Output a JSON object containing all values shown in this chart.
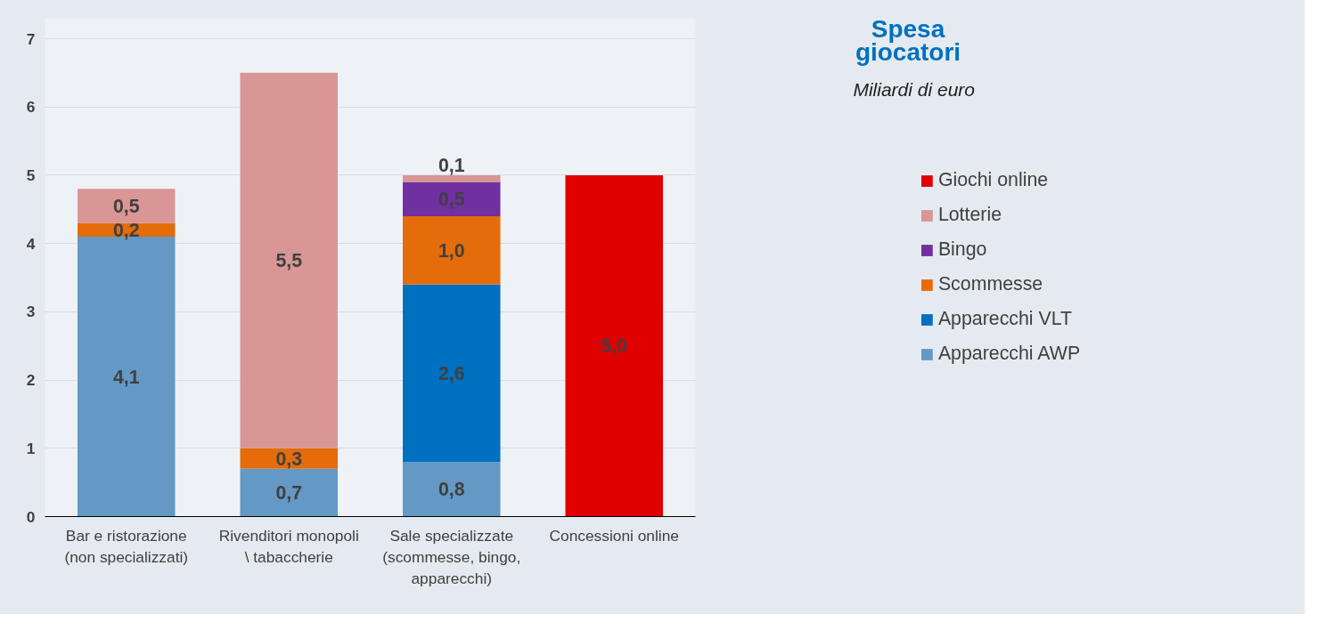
{
  "chart_data": {
    "type": "bar",
    "title": "Spesa giocatori",
    "subtitle": "Miliardi di euro",
    "categories": [
      "Bar e ristorazione (non specializzati)",
      "Rivenditori monopoli \\ tabaccherie",
      "Sale specializzate (scommesse, bingo, apparecchi)",
      "Concessioni online"
    ],
    "stacked": true,
    "legend": "right",
    "grid": "y",
    "ylim": [
      0,
      7.3
    ],
    "yticks": [
      0,
      1,
      2,
      3,
      4,
      5,
      6,
      7
    ],
    "series": [
      {
        "name": "Apparecchi AWP",
        "color": "#6399c4",
        "values": [
          4.1,
          0.7,
          0.8,
          null
        ],
        "value_labels": [
          "4,1",
          "0,7",
          "0,8",
          null
        ]
      },
      {
        "name": "Apparecchi VLT",
        "color": "#0070c0",
        "values": [
          null,
          null,
          2.6,
          null
        ],
        "value_labels": [
          null,
          null,
          "2,6",
          null
        ]
      },
      {
        "name": "Scommesse",
        "color": "#e46c0a",
        "values": [
          0.2,
          0.3,
          1.0,
          null
        ],
        "value_labels": [
          "0,2",
          "0,3",
          "1,0",
          null
        ]
      },
      {
        "name": "Bingo",
        "color": "#7030a0",
        "values": [
          null,
          null,
          0.5,
          null
        ],
        "value_labels": [
          null,
          null,
          "0,5",
          null
        ]
      },
      {
        "name": "Lotterie",
        "color": "#d99694",
        "values": [
          0.5,
          5.5,
          0.1,
          null
        ],
        "value_labels": [
          "0,5",
          "5,5",
          "0,1",
          null
        ]
      },
      {
        "name": "Giochi online",
        "color": "#e00000",
        "values": [
          null,
          null,
          null,
          5.0
        ],
        "value_labels": [
          null,
          null,
          null,
          "5,0"
        ]
      }
    ]
  }
}
